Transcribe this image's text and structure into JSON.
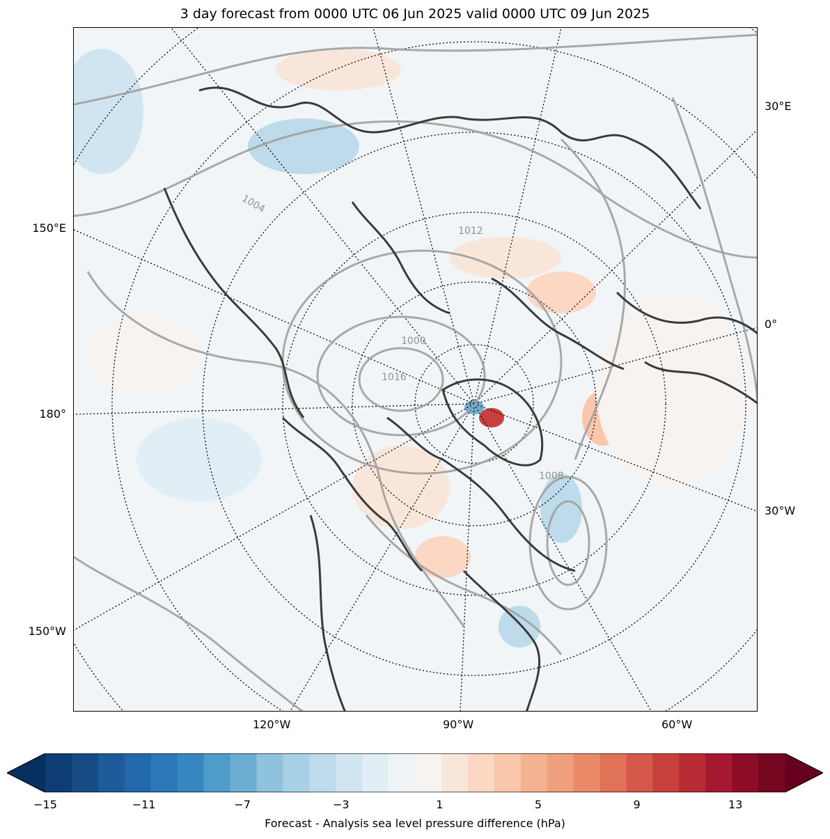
{
  "title": "3 day forecast from 0000 UTC 06 Jun 2025 valid 0000 UTC 09 Jun 2025",
  "map": {
    "projection": "north-polar-stereographic",
    "longitude_labels_bottom": [
      "120°W",
      "90°W",
      "60°W"
    ],
    "longitude_labels_left": [
      "150°E",
      "180°",
      "150°W"
    ],
    "longitude_labels_right": [
      "30°E",
      "0°",
      "30°W"
    ],
    "contour_labels": [
      "1000",
      "1004",
      "1008",
      "1012",
      "1016"
    ],
    "colors": {
      "land_coastline": "#3a3a3a",
      "isobar": "#a0a0a0",
      "graticule": "#000000",
      "background": "#f1f5f8"
    }
  },
  "colorbar": {
    "label": "Forecast - Analysis sea level pressure difference (hPa)",
    "min": -15,
    "max": 15,
    "step": 1,
    "extend": "both",
    "tick_labels": [
      "−15",
      "−11",
      "−7",
      "−3",
      "1",
      "5",
      "9",
      "13"
    ],
    "tick_values": [
      -15,
      -11,
      -7,
      -3,
      1,
      5,
      9,
      13
    ],
    "colors": [
      "#053061",
      "#0e3d73",
      "#164b85",
      "#1e5b98",
      "#2368ad",
      "#2d78b9",
      "#3787c0",
      "#4f9bc9",
      "#6eadd2",
      "#8fc2dd",
      "#a8d0e4",
      "#bddbea",
      "#d0e5f0",
      "#e1eef5",
      "#eff3f6",
      "#f7f3f0",
      "#f9e6db",
      "#fbd7c4",
      "#fac6ac",
      "#f5b291",
      "#f1a07d",
      "#ea8a68",
      "#e07258",
      "#d4594a",
      "#c8403e",
      "#b82b35",
      "#a4192f",
      "#8d0c27",
      "#760720",
      "#67001f"
    ]
  }
}
